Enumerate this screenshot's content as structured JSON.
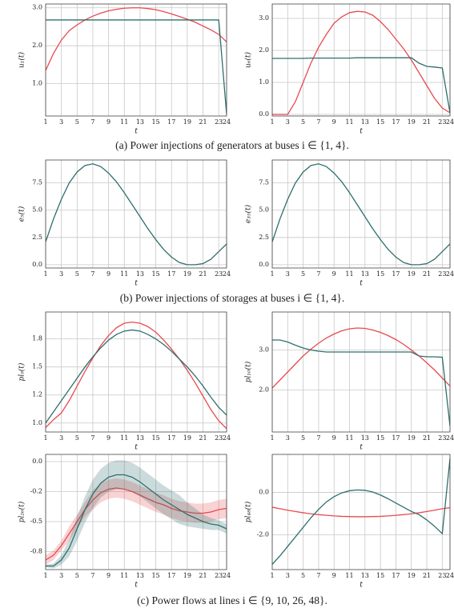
{
  "captions": [
    "(a) Power injections of generators at buses i ∈ {1, 4}.",
    "(b) Power injections of storages at buses i ∈ {1, 4}.",
    "(c) Power flows at lines i ∈ {9, 10, 26, 48}."
  ],
  "chart_data": [
    {
      "type": "line",
      "ylabel": "u₁(t)",
      "xlabel": "t",
      "grid": true,
      "x": [
        1,
        2,
        3,
        4,
        5,
        6,
        7,
        8,
        9,
        10,
        11,
        12,
        13,
        14,
        15,
        16,
        17,
        18,
        19,
        20,
        21,
        22,
        23,
        24
      ],
      "xlim": [
        1,
        24
      ],
      "xticks": [
        1,
        3,
        5,
        7,
        9,
        11,
        13,
        15,
        17,
        19,
        21,
        23,
        24
      ],
      "ylim": [
        0.15,
        3.1
      ],
      "yticks": [
        {
          "value": 1,
          "label": "1.0"
        },
        {
          "value": 2,
          "label": "2.0"
        },
        {
          "value": 3,
          "label": "3.0"
        }
      ],
      "series": [
        {
          "color": "#e84a4f",
          "values": [
            1.35,
            1.8,
            2.15,
            2.4,
            2.55,
            2.68,
            2.78,
            2.86,
            2.92,
            2.96,
            2.99,
            3.0,
            3.0,
            2.98,
            2.95,
            2.9,
            2.84,
            2.77,
            2.7,
            2.62,
            2.52,
            2.42,
            2.3,
            2.1
          ]
        },
        {
          "color": "#2f6f6f",
          "values": [
            2.68,
            2.68,
            2.68,
            2.68,
            2.68,
            2.68,
            2.68,
            2.68,
            2.68,
            2.68,
            2.68,
            2.68,
            2.68,
            2.68,
            2.68,
            2.68,
            2.68,
            2.68,
            2.68,
            2.68,
            2.68,
            2.68,
            2.68,
            0.2
          ]
        }
      ]
    },
    {
      "type": "line",
      "ylabel": "u₆(t)",
      "xlabel": "t",
      "grid": true,
      "x": [
        1,
        2,
        3,
        4,
        5,
        6,
        7,
        8,
        9,
        10,
        11,
        12,
        13,
        14,
        15,
        16,
        17,
        18,
        19,
        20,
        21,
        22,
        23,
        24
      ],
      "xlim": [
        1,
        24
      ],
      "xticks": [
        1,
        3,
        5,
        7,
        9,
        11,
        13,
        15,
        17,
        19,
        21,
        23,
        24
      ],
      "ylim": [
        -0.05,
        3.45
      ],
      "yticks": [
        {
          "value": 0,
          "label": "0.0"
        },
        {
          "value": 1,
          "label": "1.0"
        },
        {
          "value": 2,
          "label": "2.0"
        },
        {
          "value": 3,
          "label": "3.0"
        }
      ],
      "series": [
        {
          "color": "#e84a4f",
          "values": [
            0,
            0,
            0,
            0.4,
            1.0,
            1.6,
            2.1,
            2.5,
            2.85,
            3.05,
            3.18,
            3.22,
            3.2,
            3.1,
            2.9,
            2.65,
            2.35,
            2.05,
            1.7,
            1.3,
            0.9,
            0.5,
            0.2,
            0.05
          ]
        },
        {
          "color": "#2f6f6f",
          "values": [
            1.75,
            1.75,
            1.75,
            1.75,
            1.75,
            1.76,
            1.76,
            1.76,
            1.76,
            1.76,
            1.76,
            1.77,
            1.77,
            1.77,
            1.77,
            1.77,
            1.77,
            1.77,
            1.77,
            1.6,
            1.5,
            1.48,
            1.45,
            0.05
          ]
        }
      ]
    },
    {
      "type": "line",
      "ylabel": "e₅(t)",
      "xlabel": "t",
      "grid": true,
      "x": [
        1,
        2,
        3,
        4,
        5,
        6,
        7,
        8,
        9,
        10,
        11,
        12,
        13,
        14,
        15,
        16,
        17,
        18,
        19,
        20,
        21,
        22,
        23,
        24
      ],
      "xlim": [
        1,
        24
      ],
      "xticks": [
        1,
        3,
        5,
        7,
        9,
        11,
        13,
        15,
        17,
        19,
        21,
        23,
        24
      ],
      "ylim": [
        -0.3,
        9.6
      ],
      "yticks": [
        {
          "value": 0,
          "label": "0.0"
        },
        2.5,
        {
          "value": 5,
          "label": "5.0"
        },
        7.5
      ],
      "series": [
        {
          "color": "#2f6f6f",
          "values": [
            2.1,
            4.2,
            6.0,
            7.5,
            8.5,
            9.1,
            9.25,
            9.0,
            8.4,
            7.6,
            6.6,
            5.5,
            4.4,
            3.3,
            2.3,
            1.4,
            0.7,
            0.2,
            0,
            0,
            0.1,
            0.5,
            1.2,
            1.9
          ]
        }
      ]
    },
    {
      "type": "line",
      "ylabel": "e₃₅(t)",
      "xlabel": "t",
      "grid": true,
      "x": [
        1,
        2,
        3,
        4,
        5,
        6,
        7,
        8,
        9,
        10,
        11,
        12,
        13,
        14,
        15,
        16,
        17,
        18,
        19,
        20,
        21,
        22,
        23,
        24
      ],
      "xlim": [
        1,
        24
      ],
      "xticks": [
        1,
        3,
        5,
        7,
        9,
        11,
        13,
        15,
        17,
        19,
        21,
        23,
        24
      ],
      "ylim": [
        -0.3,
        9.6
      ],
      "yticks": [
        {
          "value": 0,
          "label": "0.0"
        },
        2.5,
        {
          "value": 5,
          "label": "5.0"
        },
        7.5
      ],
      "series": [
        {
          "color": "#2f6f6f",
          "values": [
            2.1,
            4.2,
            6.0,
            7.5,
            8.5,
            9.1,
            9.25,
            9.0,
            8.4,
            7.6,
            6.6,
            5.5,
            4.4,
            3.3,
            2.3,
            1.4,
            0.7,
            0.2,
            0,
            0,
            0.1,
            0.5,
            1.2,
            1.9
          ]
        }
      ]
    },
    {
      "type": "line",
      "ylabel": "pl₉(t)",
      "xlabel": "t",
      "grid": true,
      "x": [
        1,
        2,
        3,
        4,
        5,
        6,
        7,
        8,
        9,
        10,
        11,
        12,
        13,
        14,
        15,
        16,
        17,
        18,
        19,
        20,
        21,
        22,
        23,
        24
      ],
      "xlim": [
        1,
        24
      ],
      "xticks": [
        1,
        3,
        5,
        7,
        9,
        11,
        13,
        15,
        17,
        19,
        21,
        23,
        24
      ],
      "ylim": [
        0.92,
        1.99
      ],
      "yticks": [
        {
          "value": 1,
          "label": "1.0"
        },
        {
          "value": 1.25,
          "label": "1.2"
        },
        1.5,
        {
          "value": 1.75,
          "label": "1.8"
        }
      ],
      "series": [
        {
          "color": "#e84a4f",
          "values": [
            0.96,
            1.03,
            1.09,
            1.2,
            1.33,
            1.46,
            1.58,
            1.69,
            1.78,
            1.85,
            1.89,
            1.9,
            1.89,
            1.86,
            1.81,
            1.74,
            1.66,
            1.57,
            1.47,
            1.36,
            1.24,
            1.12,
            1.02,
            0.95
          ]
        },
        {
          "color": "#2f6f6f",
          "values": [
            1.0,
            1.1,
            1.2,
            1.3,
            1.4,
            1.5,
            1.59,
            1.67,
            1.74,
            1.79,
            1.82,
            1.83,
            1.82,
            1.79,
            1.75,
            1.7,
            1.64,
            1.57,
            1.5,
            1.42,
            1.33,
            1.23,
            1.14,
            1.07
          ]
        }
      ]
    },
    {
      "type": "line",
      "ylabel": "pl₁₀(t)",
      "xlabel": "t",
      "grid": true,
      "x": [
        1,
        2,
        3,
        4,
        5,
        6,
        7,
        8,
        9,
        10,
        11,
        12,
        13,
        14,
        15,
        16,
        17,
        18,
        19,
        20,
        21,
        22,
        23,
        24
      ],
      "xlim": [
        1,
        24
      ],
      "xticks": [
        1,
        3,
        5,
        7,
        9,
        11,
        13,
        15,
        17,
        19,
        21,
        23,
        24
      ],
      "ylim": [
        0.95,
        3.95
      ],
      "yticks": [
        {
          "value": 2,
          "label": "2.0"
        },
        {
          "value": 3,
          "label": "3.0"
        }
      ],
      "series": [
        {
          "color": "#e84a4f",
          "values": [
            2.05,
            2.25,
            2.45,
            2.65,
            2.85,
            3.02,
            3.17,
            3.3,
            3.4,
            3.48,
            3.53,
            3.55,
            3.54,
            3.5,
            3.44,
            3.36,
            3.26,
            3.14,
            3.0,
            2.85,
            2.68,
            2.5,
            2.3,
            2.1
          ]
        },
        {
          "color": "#2f6f6f",
          "values": [
            3.25,
            3.25,
            3.2,
            3.12,
            3.05,
            3.0,
            2.97,
            2.95,
            2.95,
            2.95,
            2.95,
            2.95,
            2.95,
            2.95,
            2.95,
            2.95,
            2.95,
            2.95,
            2.95,
            2.85,
            2.83,
            2.83,
            2.82,
            1.1
          ]
        }
      ]
    },
    {
      "type": "line",
      "ylabel": "pl₂₆(t)",
      "xlabel": "t",
      "grid": true,
      "x": [
        1,
        2,
        3,
        4,
        5,
        6,
        7,
        8,
        9,
        10,
        11,
        12,
        13,
        14,
        15,
        16,
        17,
        18,
        19,
        20,
        21,
        22,
        23,
        24
      ],
      "xlim": [
        1,
        24
      ],
      "xticks": [
        1,
        3,
        5,
        7,
        9,
        11,
        13,
        15,
        17,
        19,
        21,
        23,
        24
      ],
      "ylim": [
        -0.9,
        0.06
      ],
      "yticks": [
        {
          "value": -0.75,
          "label": "-0.8"
        },
        -0.5,
        {
          "value": -0.25,
          "label": "-0.2"
        },
        {
          "value": 0,
          "label": "0.0"
        }
      ],
      "series": [
        {
          "color": "#e84a4f",
          "values": [
            -0.82,
            -0.78,
            -0.7,
            -0.6,
            -0.5,
            -0.4,
            -0.32,
            -0.26,
            -0.23,
            -0.22,
            -0.23,
            -0.25,
            -0.28,
            -0.31,
            -0.34,
            -0.36,
            -0.39,
            -0.41,
            -0.42,
            -0.43,
            -0.43,
            -0.42,
            -0.4,
            -0.39
          ],
          "lower": [
            -0.86,
            -0.82,
            -0.74,
            -0.66,
            -0.56,
            -0.46,
            -0.4,
            -0.34,
            -0.31,
            -0.3,
            -0.31,
            -0.33,
            -0.36,
            -0.39,
            -0.42,
            -0.44,
            -0.47,
            -0.49,
            -0.5,
            -0.51,
            -0.51,
            -0.5,
            -0.48,
            -0.47
          ],
          "upper": [
            -0.78,
            -0.74,
            -0.66,
            -0.54,
            -0.44,
            -0.34,
            -0.24,
            -0.18,
            -0.15,
            -0.14,
            -0.15,
            -0.17,
            -0.2,
            -0.23,
            -0.26,
            -0.28,
            -0.31,
            -0.33,
            -0.34,
            -0.35,
            -0.35,
            -0.34,
            -0.32,
            -0.31
          ]
        },
        {
          "color": "#2f6f6f",
          "values": [
            -0.87,
            -0.87,
            -0.82,
            -0.72,
            -0.56,
            -0.4,
            -0.27,
            -0.18,
            -0.13,
            -0.11,
            -0.11,
            -0.13,
            -0.17,
            -0.22,
            -0.27,
            -0.32,
            -0.36,
            -0.4,
            -0.44,
            -0.47,
            -0.5,
            -0.52,
            -0.53,
            -0.56
          ],
          "lower": [
            -0.88,
            -0.89,
            -0.86,
            -0.79,
            -0.66,
            -0.51,
            -0.39,
            -0.3,
            -0.25,
            -0.23,
            -0.23,
            -0.25,
            -0.29,
            -0.34,
            -0.39,
            -0.44,
            -0.48,
            -0.52,
            -0.54,
            -0.55,
            -0.56,
            -0.57,
            -0.57,
            -0.6
          ],
          "upper": [
            -0.86,
            -0.85,
            -0.78,
            -0.65,
            -0.46,
            -0.29,
            -0.15,
            -0.06,
            -0.01,
            0.01,
            0.01,
            -0.01,
            -0.05,
            -0.1,
            -0.15,
            -0.2,
            -0.24,
            -0.28,
            -0.34,
            -0.39,
            -0.44,
            -0.47,
            -0.49,
            -0.52
          ]
        }
      ]
    },
    {
      "type": "line",
      "ylabel": "pl₄₈(t)",
      "xlabel": "t",
      "grid": true,
      "x": [
        1,
        2,
        3,
        4,
        5,
        6,
        7,
        8,
        9,
        10,
        11,
        12,
        13,
        14,
        15,
        16,
        17,
        18,
        19,
        20,
        21,
        22,
        23,
        24
      ],
      "xlim": [
        1,
        24
      ],
      "xticks": [
        1,
        3,
        5,
        7,
        9,
        11,
        13,
        15,
        17,
        19,
        21,
        23,
        24
      ],
      "ylim": [
        -3.65,
        1.8
      ],
      "yticks": [
        {
          "value": -2,
          "label": "-2.0"
        },
        {
          "value": 0,
          "label": "0.0"
        }
      ],
      "series": [
        {
          "color": "#e84a4f",
          "values": [
            -0.7,
            -0.77,
            -0.84,
            -0.9,
            -0.96,
            -1.01,
            -1.05,
            -1.08,
            -1.11,
            -1.13,
            -1.14,
            -1.15,
            -1.15,
            -1.14,
            -1.13,
            -1.11,
            -1.08,
            -1.05,
            -1.01,
            -0.96,
            -0.9,
            -0.84,
            -0.77,
            -0.72
          ]
        },
        {
          "color": "#2f6f6f",
          "values": [
            -3.4,
            -3.0,
            -2.55,
            -2.1,
            -1.65,
            -1.2,
            -0.8,
            -0.45,
            -0.2,
            -0.02,
            0.08,
            0.12,
            0.1,
            0.02,
            -0.12,
            -0.3,
            -0.5,
            -0.7,
            -0.9,
            -1.05,
            -1.3,
            -1.6,
            -1.95,
            1.6
          ]
        }
      ]
    }
  ]
}
